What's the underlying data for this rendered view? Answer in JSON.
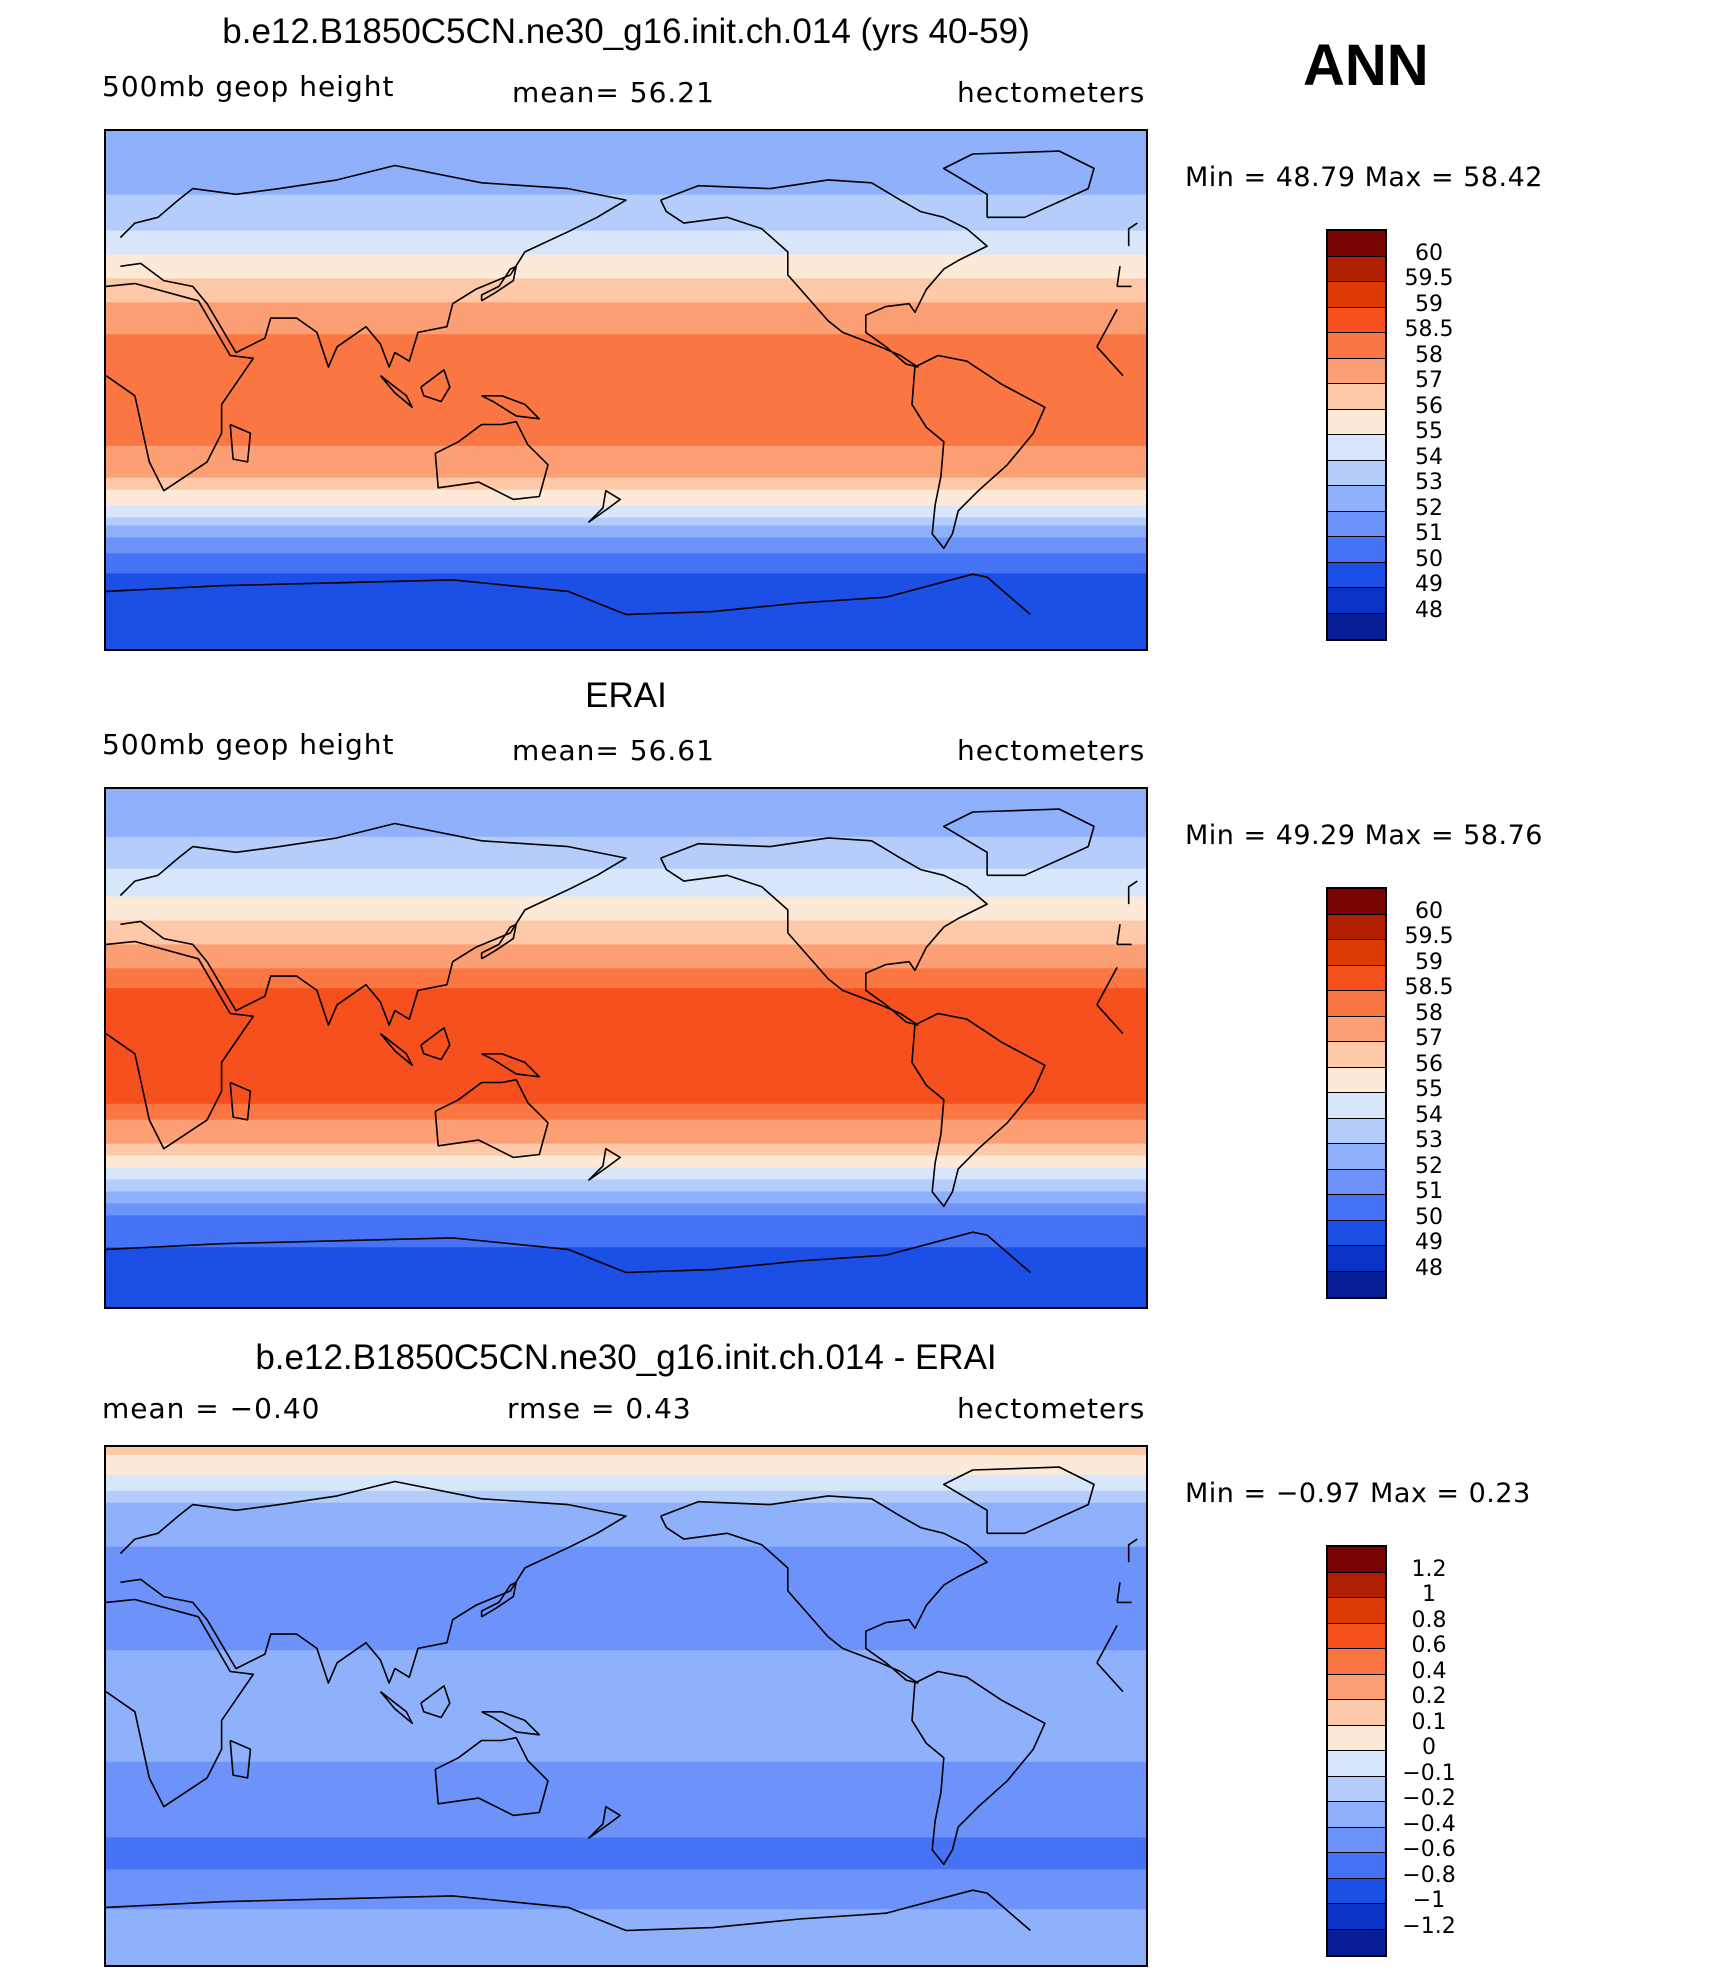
{
  "season": "ANN",
  "panels": [
    {
      "title": "b.e12.B1850C5CN.ne30_g16.init.ch.014 (yrs 40-59)",
      "left_label": "500mb  geop  height",
      "center_label": "mean=   56.21",
      "units": "hectometers",
      "minmax": "Min  =    48.79  Max  =    58.42"
    },
    {
      "title": "ERAI",
      "left_label": "500mb  geop  height",
      "center_label": "mean=   56.61",
      "units": "hectometers",
      "minmax": "Min  =    49.29  Max  =    58.76"
    },
    {
      "title": "b.e12.B1850C5CN.ne30_g16.init.ch.014 - ERAI",
      "left_label": "mean  =    −0.40",
      "center_label": "rmse  =     0.43",
      "units": "hectometers",
      "minmax": "Min  =   −0.97  Max  =     0.23"
    }
  ],
  "colorbars": [
    {
      "labels": [
        "60",
        "59.5",
        "59",
        "58.5",
        "58",
        "57",
        "56",
        "55",
        "54",
        "53",
        "52",
        "51",
        "50",
        "49",
        "48"
      ],
      "colors": [
        "#7a0403",
        "#b01f02",
        "#dc3a06",
        "#f5501d",
        "#fa7642",
        "#fc9f75",
        "#fdc9a8",
        "#fde9d8",
        "#d7e6fa",
        "#b5cdfa",
        "#8fb0fb",
        "#6d93fb",
        "#4673f5",
        "#1b4fe6",
        "#0a32c4",
        "#081d98"
      ]
    },
    {
      "labels": [
        "60",
        "59.5",
        "59",
        "58.5",
        "58",
        "57",
        "56",
        "55",
        "54",
        "53",
        "52",
        "51",
        "50",
        "49",
        "48"
      ],
      "colors": [
        "#7a0403",
        "#b01f02",
        "#dc3a06",
        "#f5501d",
        "#fa7642",
        "#fc9f75",
        "#fdc9a8",
        "#fde9d8",
        "#d7e6fa",
        "#b5cdfa",
        "#8fb0fb",
        "#6d93fb",
        "#4673f5",
        "#1b4fe6",
        "#0a32c4",
        "#081d98"
      ]
    },
    {
      "labels": [
        "1.2",
        "1",
        "0.8",
        "0.6",
        "0.4",
        "0.2",
        "0.1",
        "0",
        "−0.1",
        "−0.2",
        "−0.4",
        "−0.6",
        "−0.8",
        "−1",
        "−1.2"
      ],
      "colors": [
        "#7a0403",
        "#b01f02",
        "#dc3a06",
        "#f5501d",
        "#fa7642",
        "#fc9f75",
        "#fdc9a8",
        "#fde9d8",
        "#d7e6fa",
        "#b5cdfa",
        "#8fb0fb",
        "#6d93fb",
        "#4673f5",
        "#1b4fe6",
        "#0a32c4",
        "#081d98"
      ]
    }
  ],
  "chart_data": [
    {
      "type": "heatmap",
      "title": "b.e12.B1850C5CN.ne30_g16.init.ch.014 (yrs 40-59)",
      "variable": "500mb geop height",
      "units": "hectometers",
      "mean": 56.21,
      "min": 48.79,
      "max": 58.42,
      "levels": [
        48,
        49,
        50,
        51,
        52,
        53,
        54,
        55,
        56,
        57,
        58,
        58.5,
        59,
        59.5,
        60
      ],
      "zonal_profile": {
        "lat": [
          90,
          80,
          70,
          60,
          50,
          40,
          30,
          20,
          10,
          0,
          -10,
          -20,
          -30,
          -40,
          -50,
          -60,
          -70,
          -80,
          -90
        ],
        "value": [
          52.0,
          52.2,
          52.8,
          53.6,
          54.6,
          55.8,
          57.1,
          58.0,
          58.2,
          58.2,
          58.2,
          58.0,
          57.0,
          55.1,
          52.3,
          50.3,
          49.6,
          49.3,
          49.3
        ]
      }
    },
    {
      "type": "heatmap",
      "title": "ERAI",
      "variable": "500mb geop height",
      "units": "hectometers",
      "mean": 56.61,
      "min": 49.29,
      "max": 58.76,
      "levels": [
        48,
        49,
        50,
        51,
        52,
        53,
        54,
        55,
        56,
        57,
        58,
        58.5,
        59,
        59.5,
        60
      ],
      "zonal_profile": {
        "lat": [
          90,
          80,
          70,
          60,
          50,
          40,
          30,
          20,
          10,
          0,
          -10,
          -20,
          -30,
          -40,
          -50,
          -60,
          -70,
          -80,
          -90
        ],
        "value": [
          52.2,
          52.5,
          53.2,
          54.2,
          55.3,
          56.6,
          57.8,
          58.6,
          58.7,
          58.7,
          58.7,
          58.5,
          57.5,
          55.6,
          52.8,
          50.7,
          49.9,
          49.6,
          49.6
        ]
      }
    },
    {
      "type": "heatmap",
      "title": "b.e12.B1850C5CN.ne30_g16.init.ch.014 - ERAI",
      "variable": "difference",
      "units": "hectometers",
      "mean": -0.4,
      "rmse": 0.43,
      "min": -0.97,
      "max": 0.23,
      "levels": [
        -1.2,
        -1,
        -0.8,
        -0.6,
        -0.4,
        -0.2,
        -0.1,
        0,
        0.1,
        0.2,
        0.4,
        0.6,
        0.8,
        1,
        1.2
      ],
      "zonal_profile": {
        "lat": [
          90,
          80,
          70,
          60,
          50,
          40,
          30,
          20,
          10,
          0,
          -10,
          -20,
          -30,
          -40,
          -50,
          -60,
          -70,
          -80,
          -90
        ],
        "value": [
          0.15,
          0.0,
          -0.2,
          -0.35,
          -0.45,
          -0.5,
          -0.45,
          -0.4,
          -0.35,
          -0.35,
          -0.35,
          -0.4,
          -0.45,
          -0.5,
          -0.7,
          -0.55,
          -0.4,
          -0.3,
          -0.3
        ]
      }
    }
  ]
}
